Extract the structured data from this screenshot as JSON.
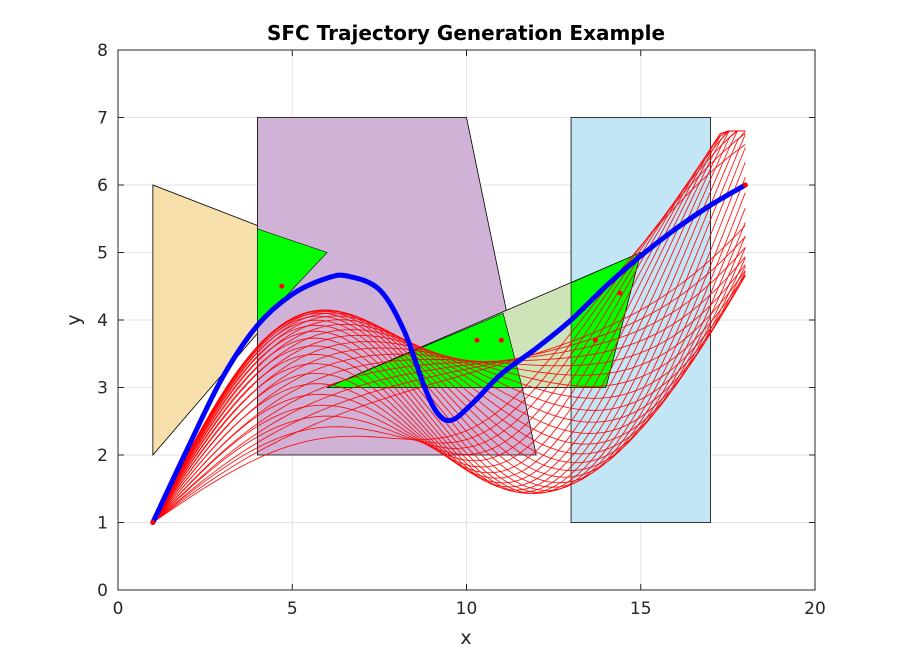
{
  "chart_data": {
    "type": "line",
    "title": "SFC Trajectory Generation Example",
    "xlabel": "x",
    "ylabel": "y",
    "xlim": [
      0,
      20
    ],
    "ylim": [
      0,
      8
    ],
    "xticks": [
      0,
      5,
      10,
      15,
      20
    ],
    "yticks": [
      0,
      1,
      2,
      3,
      4,
      5,
      6,
      7,
      8
    ],
    "grid": true,
    "legend": "none",
    "obstacles": [
      {
        "color": "#f7dfac",
        "points": [
          [
            1,
            2
          ],
          [
            1,
            6
          ],
          [
            6,
            5
          ]
        ]
      },
      {
        "color": "#cfb2d6",
        "points": [
          [
            4,
            2
          ],
          [
            4,
            7
          ],
          [
            10,
            7
          ],
          [
            12,
            2
          ]
        ]
      },
      {
        "color": "#c2e6f5",
        "points": [
          [
            13,
            1
          ],
          [
            13,
            7
          ],
          [
            17,
            7
          ],
          [
            17,
            1
          ]
        ]
      },
      {
        "color": "#cfe3b9",
        "points": [
          [
            6,
            3
          ],
          [
            15,
            5
          ],
          [
            14,
            3
          ]
        ]
      }
    ],
    "safe_corridors": [
      {
        "color": "#00ff00",
        "points": [
          [
            4,
            3.9
          ],
          [
            4,
            5.35
          ],
          [
            6,
            5
          ]
        ]
      },
      {
        "color": "#00ff00",
        "points": [
          [
            6,
            3
          ],
          [
            11.05,
            4.1
          ],
          [
            11.6,
            3
          ]
        ]
      },
      {
        "color": "#00ff00",
        "points": [
          [
            13,
            3
          ],
          [
            13,
            4.55
          ],
          [
            15,
            5
          ],
          [
            14,
            3
          ]
        ]
      }
    ],
    "waypoints": [
      [
        1,
        1
      ],
      [
        4.7,
        4.5
      ],
      [
        10.3,
        3.7
      ],
      [
        11,
        3.7
      ],
      [
        13.7,
        3.7
      ],
      [
        14.4,
        4.4
      ],
      [
        18,
        6
      ]
    ],
    "series": [
      {
        "color": "#0000ff",
        "points": [
          [
            1,
            1
          ],
          [
            2,
            2.1
          ],
          [
            3,
            3.15
          ],
          [
            4,
            3.92
          ],
          [
            5,
            4.38
          ],
          [
            6,
            4.62
          ],
          [
            6.6,
            4.65
          ],
          [
            7.5,
            4.45
          ],
          [
            8.2,
            3.85
          ],
          [
            8.8,
            3.0
          ],
          [
            9.2,
            2.6
          ],
          [
            9.6,
            2.52
          ],
          [
            10.2,
            2.78
          ],
          [
            11,
            3.2
          ],
          [
            12,
            3.58
          ],
          [
            13,
            4.0
          ],
          [
            14,
            4.5
          ],
          [
            15,
            4.95
          ],
          [
            16,
            5.35
          ],
          [
            17,
            5.7
          ],
          [
            18,
            6
          ]
        ]
      }
    ],
    "candidate_trajectories_color": "#ff0000"
  }
}
